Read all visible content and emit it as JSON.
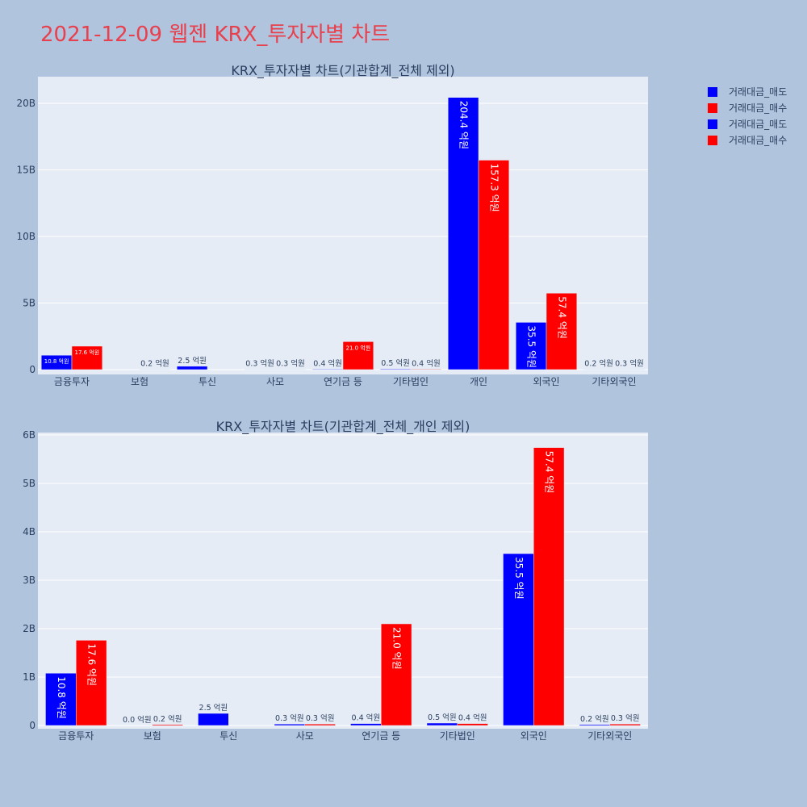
{
  "page": {
    "title": "2021-12-09 웹젠 KRX_투자자별 차트"
  },
  "chart_data": [
    {
      "type": "bar",
      "title": "KRX_투자자별 차트(기관합계_전체 제외)",
      "categories": [
        "금융투자",
        "보험",
        "투신",
        "사모",
        "연기금 등",
        "기타법인",
        "개인",
        "외국인",
        "기타외국인"
      ],
      "ylim": [
        0,
        22
      ],
      "ytick_values": [
        0,
        5,
        10,
        15,
        20
      ],
      "ytick_labels": [
        "0",
        "5B",
        "10B",
        "15B",
        "20B"
      ],
      "series": [
        {
          "name": "거래대금_매도",
          "color": "#0000ff",
          "values": [
            1.08,
            0.0,
            0.25,
            0.03,
            0.04,
            0.05,
            20.44,
            3.55,
            0.02
          ],
          "labels": [
            "10.8 억원",
            "",
            "2.5 억원",
            "0.3 억원",
            "0.4 억원",
            "0.5 억원",
            "204.4 억원",
            "35.5 억원",
            "0.2 억원"
          ]
        },
        {
          "name": "거래대금_매수",
          "color": "#ff0000",
          "values": [
            1.76,
            0.02,
            0.0,
            0.03,
            2.1,
            0.04,
            15.73,
            5.74,
            0.03
          ],
          "labels": [
            "17.6 억원",
            "0.2 억원",
            "",
            "0.3 억원",
            "21.0 억원",
            "0.4 억원",
            "157.3 억원",
            "57.4 억원",
            "0.3 억원"
          ]
        }
      ],
      "grid": true,
      "legend": "top-right"
    },
    {
      "type": "bar",
      "title": "KRX_투자자별 차트(기관합계_전체_개인 제외)",
      "categories": [
        "금융투자",
        "보험",
        "투신",
        "사모",
        "연기금 등",
        "기타법인",
        "외국인",
        "기타외국인"
      ],
      "ylim": [
        0,
        6.05
      ],
      "ytick_values": [
        0,
        1,
        2,
        3,
        4,
        5,
        6
      ],
      "ytick_labels": [
        "0",
        "1B",
        "2B",
        "3B",
        "4B",
        "5B",
        "6B"
      ],
      "series": [
        {
          "name": "거래대금_매도",
          "color": "#0000ff",
          "values": [
            1.08,
            0.0,
            0.25,
            0.03,
            0.04,
            0.05,
            3.55,
            0.02
          ],
          "labels": [
            "10.8 억원",
            "0.0 억원",
            "2.5 억원",
            "0.3 억원",
            "0.4 억원",
            "0.5 억원",
            "35.5 억원",
            "0.2 억원"
          ]
        },
        {
          "name": "거래대금_매수",
          "color": "#ff0000",
          "values": [
            1.76,
            0.02,
            0.0,
            0.03,
            2.1,
            0.04,
            5.74,
            0.03
          ],
          "labels": [
            "17.6 억원",
            "0.2 억원",
            "",
            "0.3 억원",
            "21.0 억원",
            "0.4 억원",
            "57.4 억원",
            "0.3 억원"
          ]
        }
      ],
      "grid": true
    }
  ],
  "legend": {
    "entries": [
      {
        "name": "거래대금_매도",
        "color": "#0000ff"
      },
      {
        "name": "거래대금_매수",
        "color": "#ff0000"
      },
      {
        "name": "거래대금_매도",
        "color": "#0000ff"
      },
      {
        "name": "거래대금_매수",
        "color": "#ff0000"
      }
    ]
  }
}
